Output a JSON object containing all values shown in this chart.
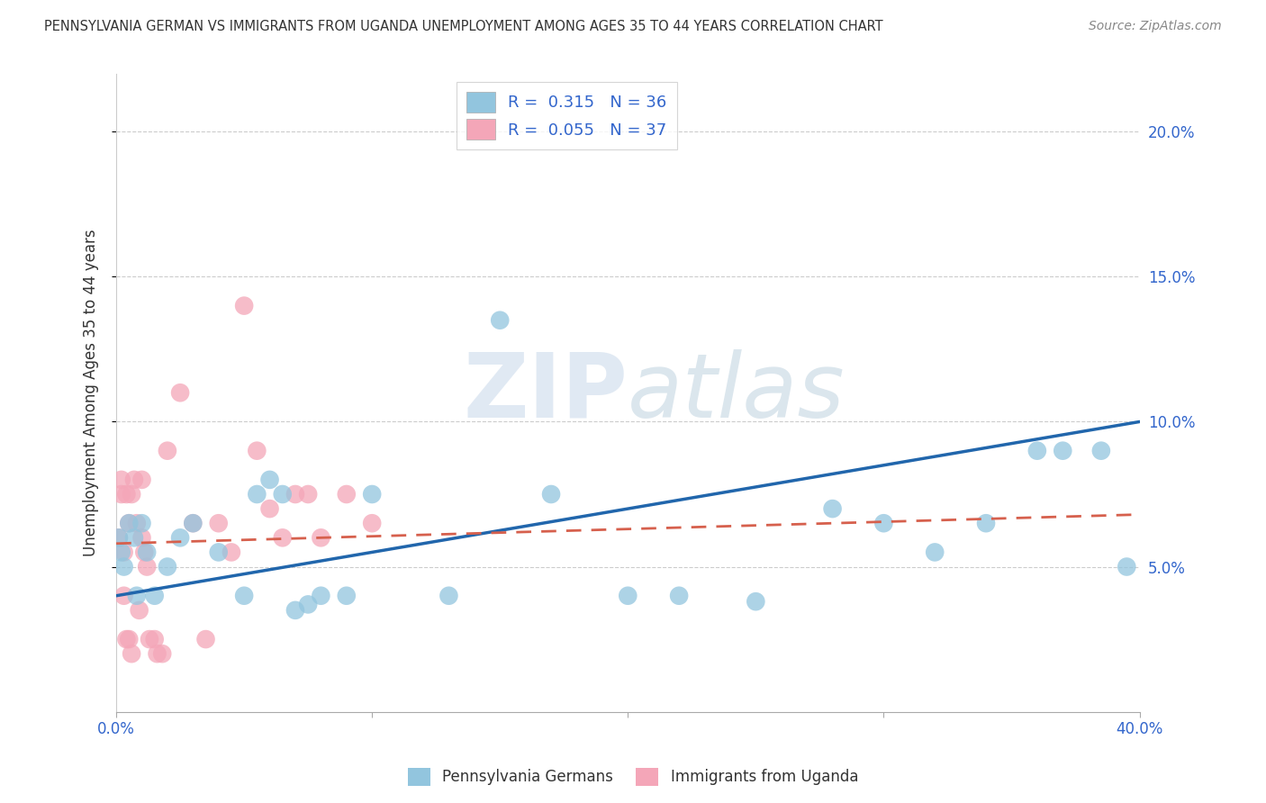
{
  "title": "PENNSYLVANIA GERMAN VS IMMIGRANTS FROM UGANDA UNEMPLOYMENT AMONG AGES 35 TO 44 YEARS CORRELATION CHART",
  "source": "Source: ZipAtlas.com",
  "ylabel": "Unemployment Among Ages 35 to 44 years",
  "xlim": [
    0,
    0.4
  ],
  "ylim": [
    0,
    0.22
  ],
  "blue_color": "#92C5DE",
  "pink_color": "#F4A6B8",
  "trend_blue": "#2166AC",
  "trend_pink": "#D6604D",
  "legend_blue_R": "0.315",
  "legend_blue_N": "36",
  "legend_pink_R": "0.055",
  "legend_pink_N": "37",
  "watermark_zip": "ZIP",
  "watermark_atlas": "atlas",
  "blue_label": "Pennsylvania Germans",
  "pink_label": "Immigrants from Uganda",
  "blue_x": [
    0.001,
    0.002,
    0.003,
    0.005,
    0.007,
    0.008,
    0.01,
    0.012,
    0.015,
    0.02,
    0.025,
    0.03,
    0.04,
    0.05,
    0.055,
    0.06,
    0.065,
    0.07,
    0.075,
    0.08,
    0.09,
    0.1,
    0.13,
    0.15,
    0.17,
    0.2,
    0.22,
    0.25,
    0.28,
    0.3,
    0.32,
    0.34,
    0.36,
    0.37,
    0.385,
    0.395
  ],
  "blue_y": [
    0.06,
    0.055,
    0.05,
    0.065,
    0.06,
    0.04,
    0.065,
    0.055,
    0.04,
    0.05,
    0.06,
    0.065,
    0.055,
    0.04,
    0.075,
    0.08,
    0.075,
    0.035,
    0.037,
    0.04,
    0.04,
    0.075,
    0.04,
    0.135,
    0.075,
    0.04,
    0.04,
    0.038,
    0.07,
    0.065,
    0.055,
    0.065,
    0.09,
    0.09,
    0.09,
    0.05
  ],
  "pink_x": [
    0.001,
    0.002,
    0.002,
    0.003,
    0.003,
    0.004,
    0.004,
    0.005,
    0.005,
    0.006,
    0.006,
    0.007,
    0.008,
    0.009,
    0.01,
    0.01,
    0.011,
    0.012,
    0.013,
    0.015,
    0.016,
    0.018,
    0.02,
    0.025,
    0.03,
    0.035,
    0.04,
    0.045,
    0.05,
    0.055,
    0.06,
    0.065,
    0.07,
    0.075,
    0.08,
    0.09,
    0.1
  ],
  "pink_y": [
    0.06,
    0.08,
    0.075,
    0.055,
    0.04,
    0.075,
    0.025,
    0.065,
    0.025,
    0.075,
    0.02,
    0.08,
    0.065,
    0.035,
    0.08,
    0.06,
    0.055,
    0.05,
    0.025,
    0.025,
    0.02,
    0.02,
    0.09,
    0.11,
    0.065,
    0.025,
    0.065,
    0.055,
    0.14,
    0.09,
    0.07,
    0.06,
    0.075,
    0.075,
    0.06,
    0.075,
    0.065
  ],
  "blue_trend_x0": 0.0,
  "blue_trend_y0": 0.04,
  "blue_trend_x1": 0.4,
  "blue_trend_y1": 0.1,
  "pink_trend_x0": 0.0,
  "pink_trend_y0": 0.058,
  "pink_trend_x1": 0.4,
  "pink_trend_y1": 0.068
}
